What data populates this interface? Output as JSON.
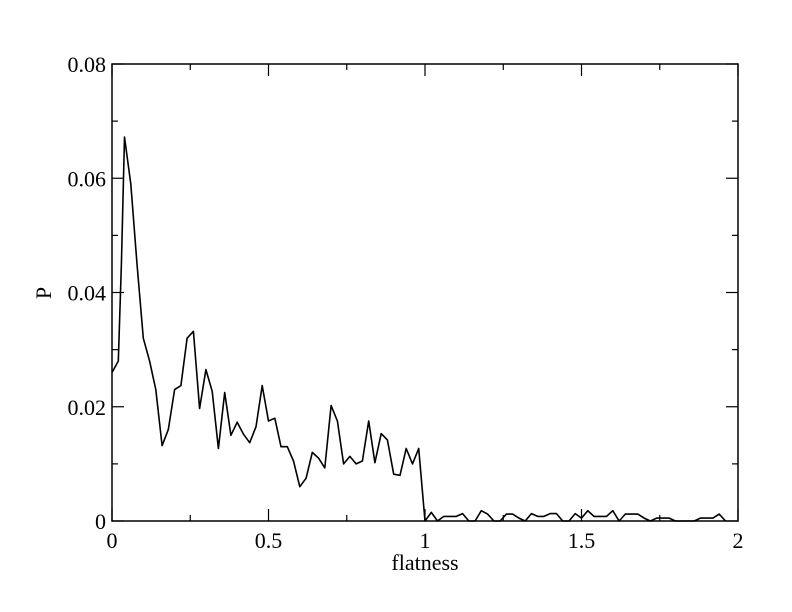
{
  "chart_data": {
    "type": "line",
    "title": "",
    "xlabel": "flatness",
    "ylabel": "P",
    "xlim": [
      0,
      2
    ],
    "ylim": [
      0,
      0.08
    ],
    "x_ticks": [
      0,
      0.5,
      1,
      1.5,
      2
    ],
    "x_tick_labels": [
      "0",
      "0.5",
      "1",
      "1.5",
      "2"
    ],
    "y_ticks": [
      0,
      0.02,
      0.04,
      0.06,
      0.08
    ],
    "y_tick_labels": [
      "0",
      "0.02",
      "0.04",
      "0.06",
      "0.08"
    ],
    "grid": false,
    "legend": "none",
    "series": [
      {
        "x": [
          0.0,
          0.02,
          0.03,
          0.04,
          0.06,
          0.08,
          0.1,
          0.12,
          0.14,
          0.16,
          0.18,
          0.2,
          0.22,
          0.24,
          0.26,
          0.28,
          0.3,
          0.32,
          0.34,
          0.36,
          0.38,
          0.4,
          0.42,
          0.44,
          0.46,
          0.48,
          0.5,
          0.52,
          0.54,
          0.56,
          0.58,
          0.6,
          0.62,
          0.64,
          0.66,
          0.68,
          0.7,
          0.72,
          0.74,
          0.76,
          0.78,
          0.8,
          0.82,
          0.84,
          0.86,
          0.88,
          0.9,
          0.92,
          0.94,
          0.96,
          0.98,
          1.0,
          1.02,
          1.04,
          1.06,
          1.08,
          1.1,
          1.12,
          1.14,
          1.16,
          1.18,
          1.2,
          1.22,
          1.24,
          1.26,
          1.28,
          1.3,
          1.32,
          1.34,
          1.36,
          1.38,
          1.4,
          1.42,
          1.44,
          1.46,
          1.48,
          1.5,
          1.52,
          1.54,
          1.56,
          1.58,
          1.6,
          1.62,
          1.64,
          1.66,
          1.68,
          1.7,
          1.72,
          1.74,
          1.76,
          1.78,
          1.8,
          1.82,
          1.84,
          1.86,
          1.88,
          1.9,
          1.92,
          1.94,
          1.96
        ],
        "y": [
          0.026,
          0.028,
          0.045,
          0.0672,
          0.059,
          0.045,
          0.032,
          0.028,
          0.023,
          0.0132,
          0.016,
          0.023,
          0.0237,
          0.032,
          0.0332,
          0.0197,
          0.0265,
          0.0227,
          0.0127,
          0.0225,
          0.015,
          0.0173,
          0.0152,
          0.0137,
          0.0165,
          0.0237,
          0.0175,
          0.018,
          0.013,
          0.013,
          0.0105,
          0.006,
          0.0075,
          0.012,
          0.011,
          0.0093,
          0.0202,
          0.0175,
          0.01,
          0.0113,
          0.01,
          0.0105,
          0.0175,
          0.0102,
          0.0153,
          0.0142,
          0.0082,
          0.008,
          0.0127,
          0.01,
          0.0127,
          0.0,
          0.0015,
          0.0,
          0.0008,
          0.0008,
          0.0008,
          0.0013,
          0.0,
          0.0,
          0.0018,
          0.0012,
          0.0,
          0.0,
          0.0012,
          0.0012,
          0.0005,
          0.0,
          0.0013,
          0.0008,
          0.0008,
          0.0013,
          0.0013,
          0.0,
          0.0,
          0.0013,
          0.0005,
          0.0018,
          0.0008,
          0.0008,
          0.0008,
          0.0018,
          0.0,
          0.0012,
          0.0012,
          0.0012,
          0.0005,
          0.0,
          0.0005,
          0.0005,
          0.0005,
          0.0,
          0.0,
          0.0,
          0.0,
          0.0005,
          0.0005,
          0.0005,
          0.0012,
          0.0
        ]
      }
    ]
  }
}
